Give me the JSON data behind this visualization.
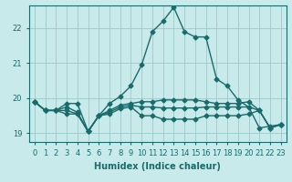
{
  "xlabel": "Humidex (Indice chaleur)",
  "background_color": "#c8eaea",
  "grid_color": "#a0c8c8",
  "line_color": "#1a6b6b",
  "xlim": [
    -0.5,
    23.5
  ],
  "ylim": [
    18.75,
    22.65
  ],
  "xticks": [
    0,
    1,
    2,
    3,
    4,
    5,
    6,
    7,
    8,
    9,
    10,
    11,
    12,
    13,
    14,
    15,
    16,
    17,
    18,
    19,
    20,
    21,
    22,
    23
  ],
  "yticks": [
    19,
    20,
    21,
    22
  ],
  "lines": [
    [
      19.9,
      19.65,
      19.65,
      19.85,
      19.85,
      19.05,
      19.5,
      19.85,
      20.05,
      20.35,
      20.95,
      21.9,
      22.2,
      22.6,
      21.9,
      21.75,
      21.75,
      20.55,
      20.35,
      19.95,
      19.75,
      19.15,
      19.2,
      19.25
    ],
    [
      19.9,
      19.65,
      19.65,
      19.75,
      19.6,
      19.05,
      19.5,
      19.65,
      19.8,
      19.85,
      19.9,
      19.9,
      19.95,
      19.95,
      19.95,
      19.95,
      19.9,
      19.85,
      19.85,
      19.85,
      19.9,
      19.65,
      19.15,
      19.25
    ],
    [
      19.9,
      19.65,
      19.65,
      19.65,
      19.55,
      19.05,
      19.5,
      19.6,
      19.75,
      19.8,
      19.75,
      19.75,
      19.72,
      19.72,
      19.72,
      19.72,
      19.75,
      19.75,
      19.75,
      19.75,
      19.75,
      19.65,
      19.15,
      19.25
    ],
    [
      19.9,
      19.65,
      19.65,
      19.55,
      19.55,
      19.05,
      19.5,
      19.55,
      19.7,
      19.75,
      19.5,
      19.5,
      19.4,
      19.4,
      19.4,
      19.4,
      19.5,
      19.5,
      19.5,
      19.5,
      19.55,
      19.65,
      19.15,
      19.25
    ]
  ],
  "marker": "D",
  "markersize": 2.5,
  "linewidth": 1.0,
  "tick_fontsize": 6,
  "xlabel_fontsize": 7
}
